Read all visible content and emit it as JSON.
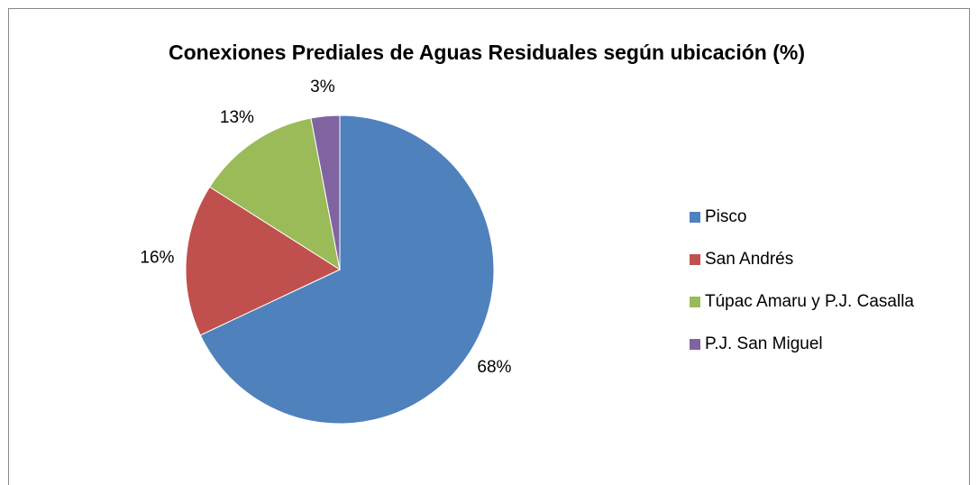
{
  "chart_data": {
    "type": "pie",
    "title": "Conexiones Prediales de Aguas Residuales según ubicación (%)",
    "categories": [
      "Pisco",
      "San Andrés",
      "Túpac Amaru y P.J. Casalla",
      "P.J. San Miguel"
    ],
    "values": [
      68,
      16,
      13,
      3
    ],
    "value_labels": [
      "68%",
      "16%",
      "13%",
      "3%"
    ],
    "colors": [
      "#4f81bd",
      "#c0504d",
      "#9bbb59",
      "#8064a2"
    ],
    "legend": "right"
  }
}
